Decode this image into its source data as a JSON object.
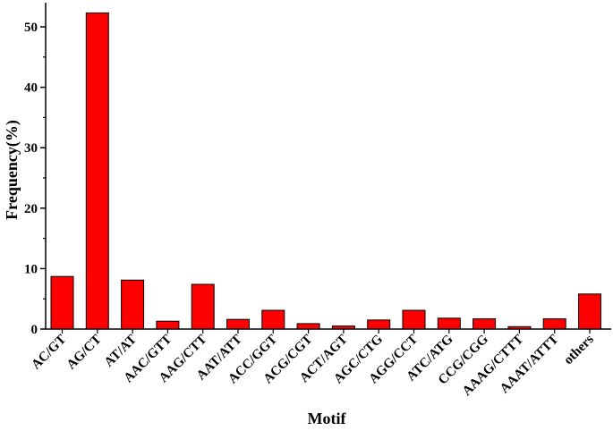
{
  "chart_data": {
    "type": "bar",
    "title": "",
    "xlabel": "Motif",
    "ylabel": "Frequency(%)",
    "ylim": [
      0,
      55
    ],
    "yticks": [
      0,
      10,
      20,
      30,
      40,
      50
    ],
    "grid": false,
    "legend": "none",
    "categories": [
      "AC/GT",
      "AG/CT",
      "AT/AT",
      "AAC/GTT",
      "AAG/CTT",
      "AAT/ATT",
      "ACC/GGT",
      "ACG/CGT",
      "ACT/AGT",
      "AGC/CTG",
      "AGG/CCT",
      "ATC/ATG",
      "CCG/CGG",
      "AAAG/CTTT",
      "AAAT/ATTT",
      "others"
    ],
    "values": [
      8.7,
      52.3,
      8.1,
      1.3,
      7.4,
      1.6,
      3.1,
      0.9,
      0.5,
      1.5,
      3.1,
      1.8,
      1.7,
      0.4,
      1.7,
      5.8
    ],
    "bar_color": "#ff0000",
    "bar_edge_color": "#000000"
  }
}
